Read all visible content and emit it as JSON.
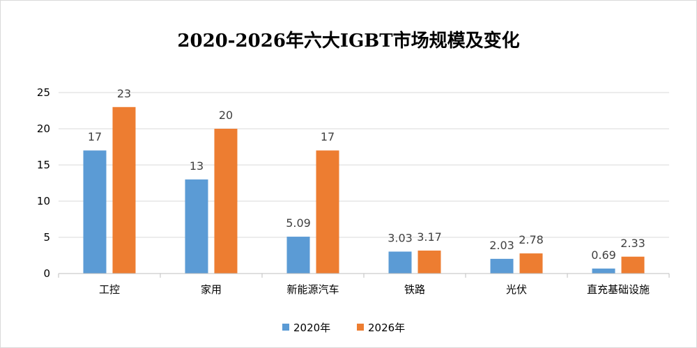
{
  "chart_data": {
    "type": "bar",
    "title": "2020-2026年六大IGBT市场规模及变化",
    "xlabel": "",
    "ylabel": "",
    "categories": [
      "工控",
      "家用",
      "新能源汽车",
      "铁路",
      "光伏",
      "直充基础设施"
    ],
    "series": [
      {
        "name": "2020年",
        "color": "#5b9bd5",
        "values": [
          17,
          13,
          5.09,
          3.03,
          2.03,
          0.69
        ],
        "labels": [
          "17",
          "13",
          "5.09",
          "3.03",
          "2.03",
          "0.69"
        ]
      },
      {
        "name": "2026年",
        "color": "#ed7d31",
        "values": [
          23,
          20,
          17,
          3.17,
          2.78,
          2.33
        ],
        "labels": [
          "23",
          "20",
          "17",
          "3.17",
          "2.78",
          "2.33"
        ]
      }
    ],
    "ylim": [
      0,
      25
    ],
    "yticks": [
      0,
      5,
      10,
      15,
      20,
      25
    ],
    "grid": true,
    "legend_position": "bottom"
  }
}
